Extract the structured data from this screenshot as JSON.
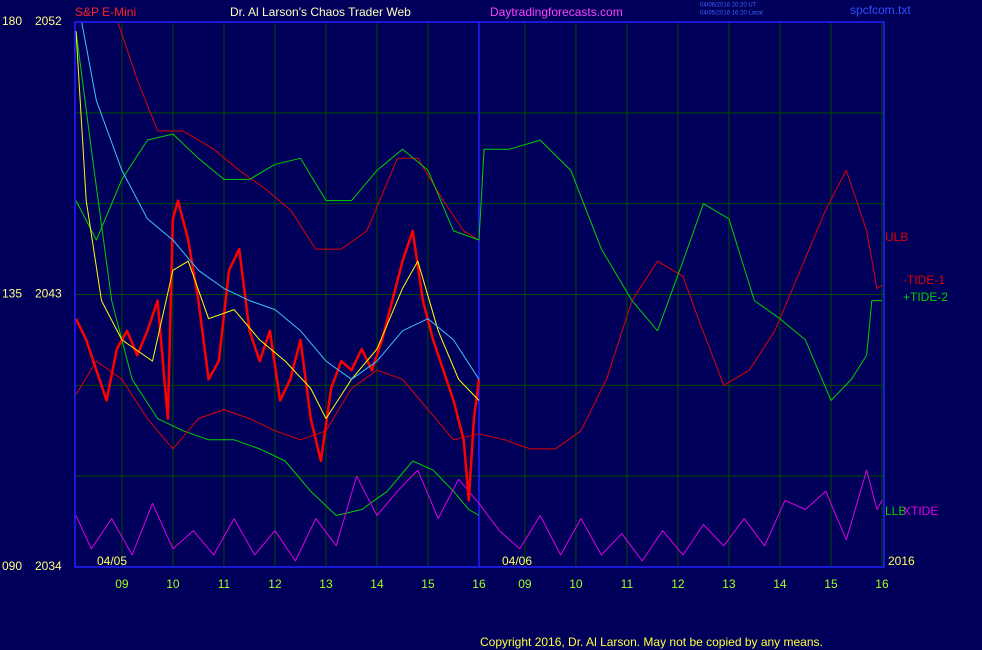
{
  "chart_data": {
    "type": "line",
    "title": "Dr. Al Larson's Chaos Trader Web",
    "subtitle": "S&P E-Mini",
    "website": "Daytradingforecasts.com",
    "timestamps": [
      "04/06/2016 20:20 UT",
      "04/05/2016 16:20 Local"
    ],
    "filename": "spcfcom.txt",
    "copyright": "Copyright 2016, Dr. Al Larson. May not be copied by any means.",
    "date_labels": [
      "04/05",
      "04/06",
      "2016"
    ],
    "xlim": [
      8.08,
      23.94
    ],
    "xticks": [
      {
        "value": 9,
        "label": "09"
      },
      10,
      11,
      12,
      13,
      14,
      15,
      16,
      {
        "value": 16.9,
        "label": "09"
      },
      {
        "value": 17.9,
        "label": "10"
      },
      {
        "value": 18.9,
        "label": "11"
      },
      {
        "value": 19.9,
        "label": "12"
      },
      {
        "value": 20.9,
        "label": "13"
      },
      {
        "value": 21.9,
        "label": "14"
      },
      {
        "value": 22.9,
        "label": "15"
      },
      {
        "value": 23.9,
        "label": "16"
      }
    ],
    "ylim": [
      2034,
      2052
    ],
    "yticks": [
      2034,
      2043,
      2052
    ],
    "y2lim": [
      90,
      180
    ],
    "y2ticks": [
      {
        "value": 90,
        "label": "090"
      },
      135,
      180
    ],
    "ygrid": [
      2037,
      2040,
      2046,
      2049
    ],
    "xdivider": 16,
    "grid": true,
    "series": [
      {
        "color": "#ff0000",
        "x": [
          8.1,
          8.3,
          8.5,
          8.7,
          8.9,
          9.1,
          9.3,
          9.5,
          9.7,
          9.9,
          10.0,
          10.1,
          10.3,
          10.5,
          10.7,
          10.9,
          11.1,
          11.3,
          11.5,
          11.7,
          11.9,
          12.1,
          12.3,
          12.5,
          12.7,
          12.9,
          13.1,
          13.3,
          13.5,
          13.7,
          13.9,
          14.1,
          14.3,
          14.5,
          14.7,
          14.9,
          15.1,
          15.3,
          15.5,
          15.7,
          15.8,
          15.9,
          16.0
        ],
        "values": [
          2042.2,
          2041.5,
          2040.5,
          2039.5,
          2041.2,
          2041.8,
          2041.0,
          2041.8,
          2042.8,
          2038.9,
          2045.5,
          2046.1,
          2044.8,
          2042.8,
          2040.2,
          2040.8,
          2043.8,
          2044.5,
          2041.8,
          2040.8,
          2041.8,
          2039.5,
          2040.2,
          2041.5,
          2038.9,
          2037.5,
          2039.9,
          2040.8,
          2040.5,
          2041.2,
          2040.5,
          2041.5,
          2042.8,
          2044.1,
          2045.1,
          2042.8,
          2041.5,
          2040.5,
          2039.5,
          2038.2,
          2036.2,
          2038.9,
          2040.2
        ]
      },
      {
        "color": "#ffff00",
        "x": [
          8.1,
          8.3,
          8.6,
          9,
          9.6,
          10,
          10.3,
          10.7,
          11.2,
          11.7,
          12.2,
          12.7,
          13,
          13.5,
          14,
          14.5,
          14.8,
          15.2,
          15.6,
          16
        ],
        "values": [
          2051.7,
          2046.1,
          2042.8,
          2041.5,
          2040.8,
          2043.8,
          2044.1,
          2042.2,
          2042.5,
          2041.5,
          2040.8,
          2039.9,
          2038.9,
          2040.2,
          2041.2,
          2043.2,
          2044.1,
          2041.8,
          2040.2,
          2039.5
        ]
      },
      {
        "color": "#40c0ff",
        "x": [
          8.2,
          8.5,
          9,
          9.5,
          10,
          10.5,
          11,
          11.5,
          12,
          12.5,
          13,
          13.5,
          14,
          14.5,
          15,
          15.5,
          16
        ],
        "values": [
          2052.1,
          2049.4,
          2047.1,
          2045.5,
          2044.8,
          2043.8,
          2043.2,
          2042.8,
          2042.5,
          2041.8,
          2040.8,
          2040.2,
          2040.8,
          2041.8,
          2042.2,
          2041.5,
          2040.2
        ]
      },
      {
        "name": "ULB",
        "color": "#e00000",
        "x": [
          8.9,
          9.3,
          9.7,
          10.2,
          10.8,
          11.3,
          11.8,
          12.3,
          12.8,
          13.3,
          13.8,
          14.4,
          14.8,
          15.3,
          15.7,
          16
        ],
        "values": [
          2052.1,
          2050.1,
          2048.4,
          2048.4,
          2047.8,
          2047.1,
          2046.5,
          2045.8,
          2044.5,
          2044.5,
          2045.1,
          2047.5,
          2047.5,
          2046.1,
          2045.1,
          2044.8
        ]
      },
      {
        "name": "LLB",
        "color": "#00d000",
        "x": [
          8.1,
          8.4,
          8.8,
          9.2,
          9.7,
          10.2,
          10.7,
          11.2,
          11.7,
          12.2,
          12.7,
          13.2,
          13.7,
          14.2,
          14.7,
          15.1,
          15.5,
          15.8,
          16
        ],
        "values": [
          2051.7,
          2047.8,
          2042.8,
          2040.2,
          2038.9,
          2038.5,
          2038.2,
          2038.2,
          2037.9,
          2037.5,
          2036.5,
          2035.7,
          2035.9,
          2036.5,
          2037.5,
          2037.2,
          2036.5,
          2035.9,
          2035.7
        ]
      },
      {
        "name": "-TIDE-1",
        "color": "#e00000",
        "x": [
          8.1,
          8.5,
          9,
          9.5,
          10,
          10.5,
          11,
          11.5,
          12,
          12.5,
          13,
          13.5,
          14,
          14.5,
          15,
          15.5,
          16,
          16.5,
          17,
          17.5,
          18,
          18.5,
          19,
          19.5,
          20,
          20.3,
          20.8,
          21.3,
          21.8,
          22.3,
          22.8,
          23.2,
          23.6,
          23.8,
          23.9
        ],
        "values": [
          2039.7,
          2040.8,
          2040.2,
          2038.9,
          2037.9,
          2038.9,
          2039.2,
          2038.9,
          2038.5,
          2038.2,
          2038.5,
          2039.9,
          2040.5,
          2040.2,
          2039.2,
          2038.2,
          2038.4,
          2038.2,
          2037.9,
          2037.9,
          2038.5,
          2040.2,
          2042.8,
          2044.1,
          2043.6,
          2042.2,
          2040.0,
          2040.5,
          2041.8,
          2043.8,
          2045.8,
          2047.1,
          2045.1,
          2043.2,
          2043.3
        ]
      },
      {
        "name": "+TIDE-2",
        "color": "#00d000",
        "x": [
          8.1,
          8.5,
          9,
          9.5,
          10,
          10.5,
          11,
          11.5,
          12,
          12.5,
          13,
          13.5,
          14,
          14.5,
          15,
          15.5,
          16,
          16.1,
          16.6,
          17.2,
          17.8,
          18.4,
          19,
          19.5,
          20,
          20.4,
          20.9,
          21.4,
          21.9,
          22.4,
          22.9,
          23.3,
          23.6,
          23.7,
          23.9
        ],
        "values": [
          2046.1,
          2044.8,
          2046.8,
          2048.1,
          2048.3,
          2047.5,
          2046.8,
          2046.8,
          2047.3,
          2047.5,
          2046.1,
          2046.1,
          2047.1,
          2047.8,
          2047.1,
          2045.1,
          2044.8,
          2047.8,
          2047.8,
          2048.1,
          2047.1,
          2044.5,
          2042.8,
          2041.8,
          2044.1,
          2046.0,
          2045.5,
          2042.8,
          2042.2,
          2041.5,
          2039.5,
          2040.2,
          2041.0,
          2042.8,
          2042.8
        ]
      },
      {
        "name": "XTIDE",
        "color": "#e000e0",
        "x": [
          8.1,
          8.4,
          8.8,
          9.2,
          9.6,
          10,
          10.4,
          10.8,
          11.2,
          11.6,
          12,
          12.4,
          12.8,
          13.2,
          13.6,
          14,
          14.4,
          14.8,
          15.2,
          15.6,
          16,
          16.4,
          16.8,
          17.2,
          17.6,
          18,
          18.4,
          18.8,
          19.2,
          19.6,
          20,
          20.4,
          20.8,
          21.2,
          21.6,
          22,
          22.4,
          22.8,
          23.2,
          23.6,
          23.8,
          23.9
        ],
        "values": [
          2035.7,
          2034.6,
          2035.6,
          2034.4,
          2036.1,
          2034.6,
          2035.2,
          2034.4,
          2035.6,
          2034.4,
          2035.2,
          2034.2,
          2035.6,
          2034.7,
          2037.0,
          2035.7,
          2036.5,
          2037.2,
          2035.6,
          2036.9,
          2036.1,
          2035.2,
          2034.6,
          2035.7,
          2034.4,
          2035.6,
          2034.4,
          2035.1,
          2034.2,
          2035.2,
          2034.4,
          2035.4,
          2034.7,
          2035.6,
          2034.7,
          2036.2,
          2035.9,
          2036.5,
          2034.9,
          2037.2,
          2035.9,
          2036.2
        ]
      }
    ]
  }
}
